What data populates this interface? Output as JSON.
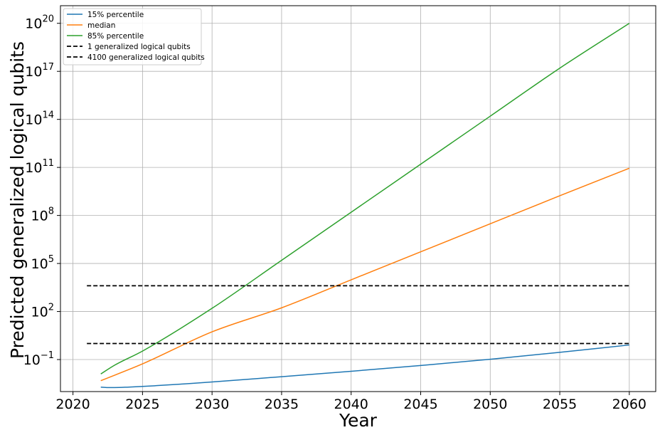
{
  "chart_data": {
    "type": "line",
    "title": "",
    "xlabel": "Year",
    "ylabel": "Predicted generalized logical qubits",
    "xlim": [
      2019.1,
      2061.9
    ],
    "ylim_log10": [
      -3,
      21.1
    ],
    "y_scale": "log",
    "grid": true,
    "legend_position": "top-left",
    "x_ticks": [
      {
        "value": 2020,
        "label": "2020"
      },
      {
        "value": 2025,
        "label": "2025"
      },
      {
        "value": 2030,
        "label": "2030"
      },
      {
        "value": 2035,
        "label": "2035"
      },
      {
        "value": 2040,
        "label": "2040"
      },
      {
        "value": 2045,
        "label": "2045"
      },
      {
        "value": 2050,
        "label": "2050"
      },
      {
        "value": 2055,
        "label": "2055"
      },
      {
        "value": 2060,
        "label": "2060"
      }
    ],
    "y_ticks": [
      {
        "exp": -1,
        "base": "10",
        "sup": "−1"
      },
      {
        "exp": 2,
        "base": "10",
        "sup": "2"
      },
      {
        "exp": 5,
        "base": "10",
        "sup": "5"
      },
      {
        "exp": 8,
        "base": "10",
        "sup": "8"
      },
      {
        "exp": 11,
        "base": "10",
        "sup": "11"
      },
      {
        "exp": 14,
        "base": "10",
        "sup": "14"
      },
      {
        "exp": 17,
        "base": "10",
        "sup": "17"
      },
      {
        "exp": 20,
        "base": "10",
        "sup": "20"
      }
    ],
    "series": [
      {
        "name": "15% percentile",
        "color": "#1f77b4",
        "dash": "solid",
        "x": [
          2022,
          2022.5,
          2023,
          2024,
          2025,
          2026,
          2028,
          2030,
          2035,
          2040,
          2045,
          2050,
          2055,
          2060
        ],
        "log10_y": [
          -2.72,
          -2.75,
          -2.75,
          -2.72,
          -2.68,
          -2.63,
          -2.52,
          -2.4,
          -2.07,
          -1.73,
          -1.37,
          -0.98,
          -0.55,
          -0.09
        ]
      },
      {
        "name": "median",
        "color": "#ff7f0e",
        "dash": "solid",
        "x": [
          2022,
          2025,
          2030,
          2035,
          2040,
          2045,
          2050,
          2055,
          2060
        ],
        "log10_y": [
          -2.32,
          -1.27,
          0.73,
          2.23,
          3.98,
          5.73,
          7.48,
          9.23,
          10.95
        ]
      },
      {
        "name": "85% percentile",
        "color": "#2ca02c",
        "dash": "solid",
        "x": [
          2022,
          2023,
          2025,
          2030,
          2035,
          2040,
          2045,
          2050,
          2055,
          2060
        ],
        "log10_y": [
          -1.9,
          -1.35,
          -0.47,
          2.2,
          5.2,
          8.2,
          11.2,
          14.2,
          17.2,
          20.0
        ]
      },
      {
        "name": "1 generalized logical qubits",
        "color": "#000000",
        "dash": "dashed",
        "x": [
          2021,
          2060
        ],
        "log10_y": [
          0,
          0
        ]
      },
      {
        "name": "4100 generalized logical qubits",
        "color": "#000000",
        "dash": "dashed",
        "x": [
          2021,
          2060
        ],
        "log10_y": [
          3.61,
          3.61
        ]
      }
    ]
  }
}
